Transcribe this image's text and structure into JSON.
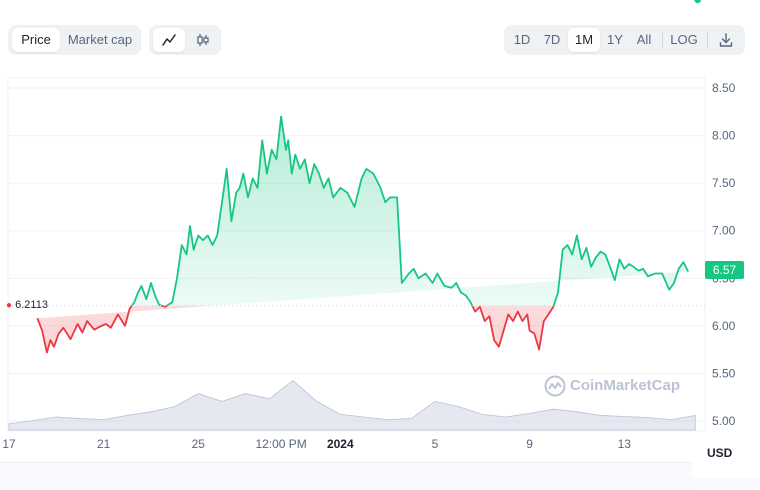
{
  "toolbar": {
    "metric_tabs": [
      {
        "label": "Price",
        "active": true
      },
      {
        "label": "Market cap",
        "active": false
      }
    ],
    "chart_type_icons": [
      "line-chart-icon",
      "candlestick-icon"
    ],
    "ranges": [
      {
        "label": "1D",
        "active": false
      },
      {
        "label": "7D",
        "active": false
      },
      {
        "label": "1M",
        "active": true
      },
      {
        "label": "1Y",
        "active": false
      },
      {
        "label": "All",
        "active": false
      }
    ],
    "log_label": "LOG",
    "download_icon": "download-icon"
  },
  "current_price": "6.57",
  "start_price_label": "6.2113",
  "currency": "USD",
  "watermark": "CoinMarketCap",
  "colors": {
    "up": "#16c784",
    "down": "#ea3943",
    "grid": "#eff2f5",
    "volume": "#cfd6e4"
  },
  "chart_data": {
    "type": "line",
    "title": "",
    "xlabel": "",
    "ylabel": "USD",
    "ylim": [
      5.0,
      8.5
    ],
    "y_ticks": [
      "8.50",
      "8.00",
      "7.50",
      "7.00",
      "6.50",
      "6.00",
      "5.50",
      "5.00"
    ],
    "x_ticks": [
      {
        "label": "17",
        "t": 0.0
      },
      {
        "label": "21",
        "t": 4.0
      },
      {
        "label": "25",
        "t": 8.0
      },
      {
        "label": "12:00 PM",
        "t": 11.5
      },
      {
        "label": "2024",
        "t": 14.0,
        "bold": true
      },
      {
        "label": "5",
        "t": 18.0
      },
      {
        "label": "9",
        "t": 22.0
      },
      {
        "label": "13",
        "t": 26.0
      }
    ],
    "t_range": [
      0,
      29.2
    ],
    "baseline": 6.2113,
    "series": [
      {
        "t": [
          1.2,
          1.4,
          1.6,
          1.75,
          1.9,
          2.1,
          2.3,
          2.6,
          2.9,
          3.1,
          3.3,
          3.6,
          3.9,
          4.1,
          4.3,
          4.6,
          4.9,
          5.1,
          5.3,
          5.45,
          5.6,
          5.8,
          6.0,
          6.2,
          6.35,
          6.6,
          6.9,
          7.1,
          7.3,
          7.5,
          7.65,
          7.8,
          8.0,
          8.2,
          8.4,
          8.6,
          8.8,
          9.0,
          9.2,
          9.4,
          9.6,
          9.75,
          9.9,
          10.1,
          10.3,
          10.5,
          10.7,
          10.9,
          11.1,
          11.3,
          11.5,
          11.7,
          11.8,
          11.95,
          12.1,
          12.3,
          12.5,
          12.7,
          12.9,
          13.1,
          13.3,
          13.5,
          13.7,
          14.0,
          14.3,
          14.6,
          14.9,
          15.1,
          15.4,
          15.7,
          15.9,
          16.1,
          16.4,
          16.6,
          16.9,
          17.1,
          17.3,
          17.6,
          17.9,
          18.1,
          18.4,
          18.7,
          18.9,
          19.1,
          19.3,
          19.5,
          19.7,
          19.9,
          20.1,
          20.3,
          20.5,
          20.7,
          20.9,
          21.1,
          21.3,
          21.5,
          21.7,
          21.9,
          22.0,
          22.2,
          22.4,
          22.6,
          22.8,
          23.0,
          23.2,
          23.4,
          23.6,
          23.8,
          24.0,
          24.2,
          24.4,
          24.6,
          24.8,
          25.0,
          25.2,
          25.4,
          25.6,
          25.8,
          26.0,
          26.2,
          26.4,
          26.6,
          26.8,
          27.0,
          27.3,
          27.6,
          27.9,
          28.1,
          28.3,
          28.5,
          28.7,
          28.9,
          29.1
        ],
        "v": [
          6.08,
          5.95,
          5.72,
          5.85,
          5.78,
          5.92,
          5.98,
          5.86,
          6.02,
          5.93,
          6.05,
          5.96,
          6.0,
          6.02,
          5.98,
          6.12,
          6.0,
          6.18,
          6.25,
          6.35,
          6.42,
          6.28,
          6.45,
          6.3,
          6.22,
          6.2,
          6.25,
          6.5,
          6.85,
          6.75,
          7.05,
          6.8,
          6.95,
          6.9,
          6.95,
          6.85,
          6.95,
          7.3,
          7.65,
          7.1,
          7.4,
          7.45,
          7.6,
          7.35,
          7.55,
          7.45,
          7.95,
          7.6,
          7.85,
          7.75,
          8.2,
          7.85,
          7.95,
          7.6,
          7.8,
          7.65,
          7.75,
          7.5,
          7.7,
          7.6,
          7.45,
          7.55,
          7.35,
          7.45,
          7.4,
          7.25,
          7.55,
          7.65,
          7.6,
          7.45,
          7.3,
          7.35,
          7.35,
          6.45,
          6.55,
          6.6,
          6.5,
          6.55,
          6.45,
          6.55,
          6.42,
          6.4,
          6.45,
          6.35,
          6.32,
          6.25,
          6.15,
          6.2,
          6.05,
          6.1,
          5.85,
          5.78,
          5.95,
          6.12,
          6.05,
          6.15,
          6.05,
          6.12,
          5.95,
          5.92,
          5.75,
          6.05,
          6.12,
          6.2,
          6.35,
          6.8,
          6.85,
          6.75,
          6.95,
          6.7,
          6.82,
          6.62,
          6.72,
          6.78,
          6.75,
          6.62,
          6.48,
          6.7,
          6.6,
          6.65,
          6.62,
          6.58,
          6.6,
          6.52,
          6.55,
          6.55,
          6.38,
          6.45,
          6.6,
          6.67,
          6.57
        ]
      }
    ],
    "volume": {
      "t": [
        0,
        1,
        2,
        3,
        4,
        5,
        6,
        7,
        8,
        9,
        10,
        11,
        12,
        13,
        14,
        15,
        16,
        17,
        18,
        19,
        20,
        21,
        22,
        23,
        24,
        25,
        26,
        27,
        28,
        29
      ],
      "v": [
        0.12,
        0.18,
        0.25,
        0.22,
        0.2,
        0.28,
        0.35,
        0.45,
        0.7,
        0.55,
        0.7,
        0.6,
        0.95,
        0.55,
        0.3,
        0.25,
        0.2,
        0.22,
        0.55,
        0.45,
        0.3,
        0.25,
        0.32,
        0.4,
        0.35,
        0.28,
        0.26,
        0.24,
        0.2,
        0.28
      ]
    }
  }
}
